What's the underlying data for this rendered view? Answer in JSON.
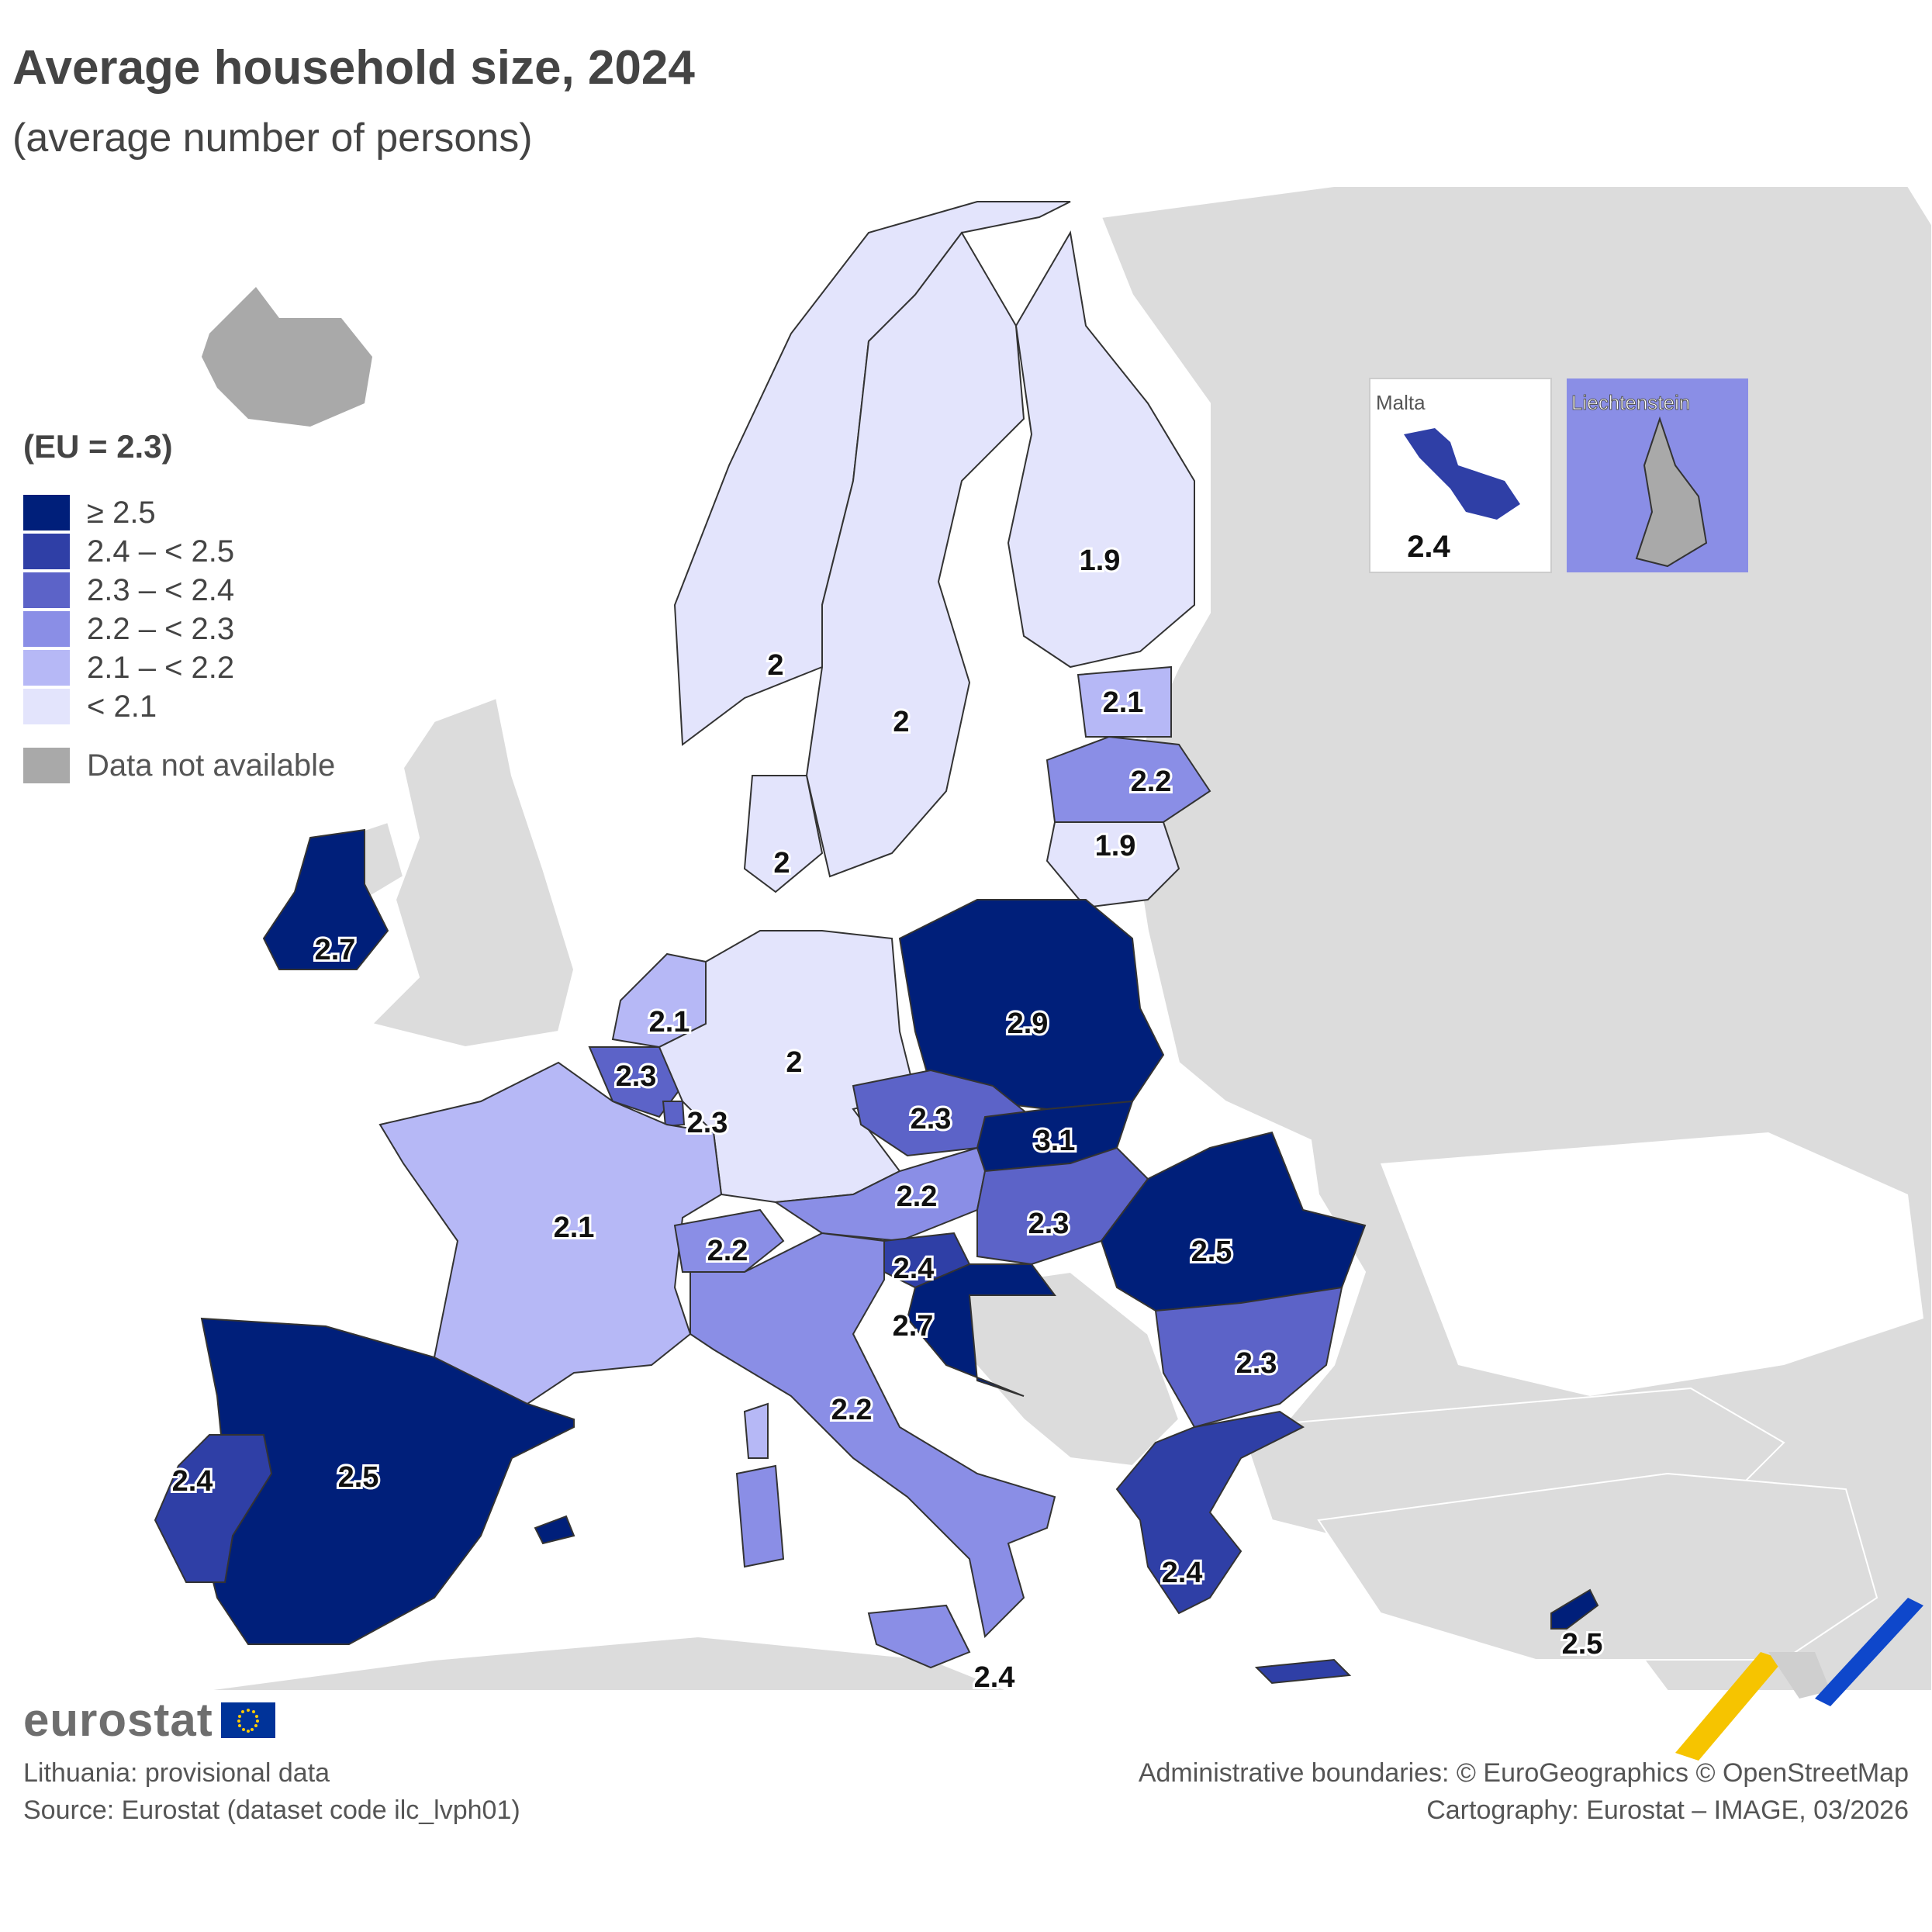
{
  "title": "Average household size, 2024",
  "subtitle": "(average number of persons)",
  "legend": {
    "title": "(EU = 2.3)",
    "classes": [
      {
        "label": "≥ 2.5",
        "color": "#001f7a"
      },
      {
        "label": "2.4 – < 2.5",
        "color": "#2f3fa6"
      },
      {
        "label": "2.3 – < 2.4",
        "color": "#5c63c8"
      },
      {
        "label": "2.2 – < 2.3",
        "color": "#8a8ee6"
      },
      {
        "label": "2.1 – < 2.2",
        "color": "#b6b8f6"
      },
      {
        "label": "< 2.1",
        "color": "#e3e4fc"
      }
    ],
    "na_label": "Data not available",
    "na_color": "#a9a9a9"
  },
  "map_values": {
    "finland": "1.9",
    "norway": "2",
    "sweden": "2",
    "denmark": "2",
    "estonia": "2.1",
    "latvia": "2.2",
    "lithuania": "1.9",
    "poland": "2.9",
    "ireland": "2.7",
    "netherlands": "2.1",
    "belgium": "2.3",
    "luxembourg": "2.3",
    "germany": "2",
    "czechia": "2.3",
    "slovakia": "3.1",
    "austria": "2.2",
    "hungary": "2.3",
    "slovenia": "2.4",
    "croatia": "2.7",
    "romania": "2.5",
    "bulgaria": "2.3",
    "france": "2.1",
    "switzerland": "2.2",
    "italy": "2.2",
    "spain": "2.5",
    "portugal": "2.4",
    "greece": "2.4",
    "malta_main": "2.4",
    "cyprus": "2.5"
  },
  "insets": {
    "malta": {
      "label": "Malta",
      "value": "2.4"
    },
    "liechtenstein": {
      "label": "Liechtenstein"
    }
  },
  "brand": "eurostat",
  "footer": {
    "left": [
      "Lithuania: provisional data",
      "Source: Eurostat (dataset code ilc_lvph01)"
    ],
    "right": [
      "Administrative boundaries: © EuroGeographics © OpenStreetMap",
      "Cartography: Eurostat – IMAGE, 03/2026"
    ]
  },
  "colors": {
    "background_land": "#dcdcdc",
    "sea": "#ffffff",
    "brand_yellow": "#f6c400",
    "brand_blue": "#0e47cb"
  }
}
